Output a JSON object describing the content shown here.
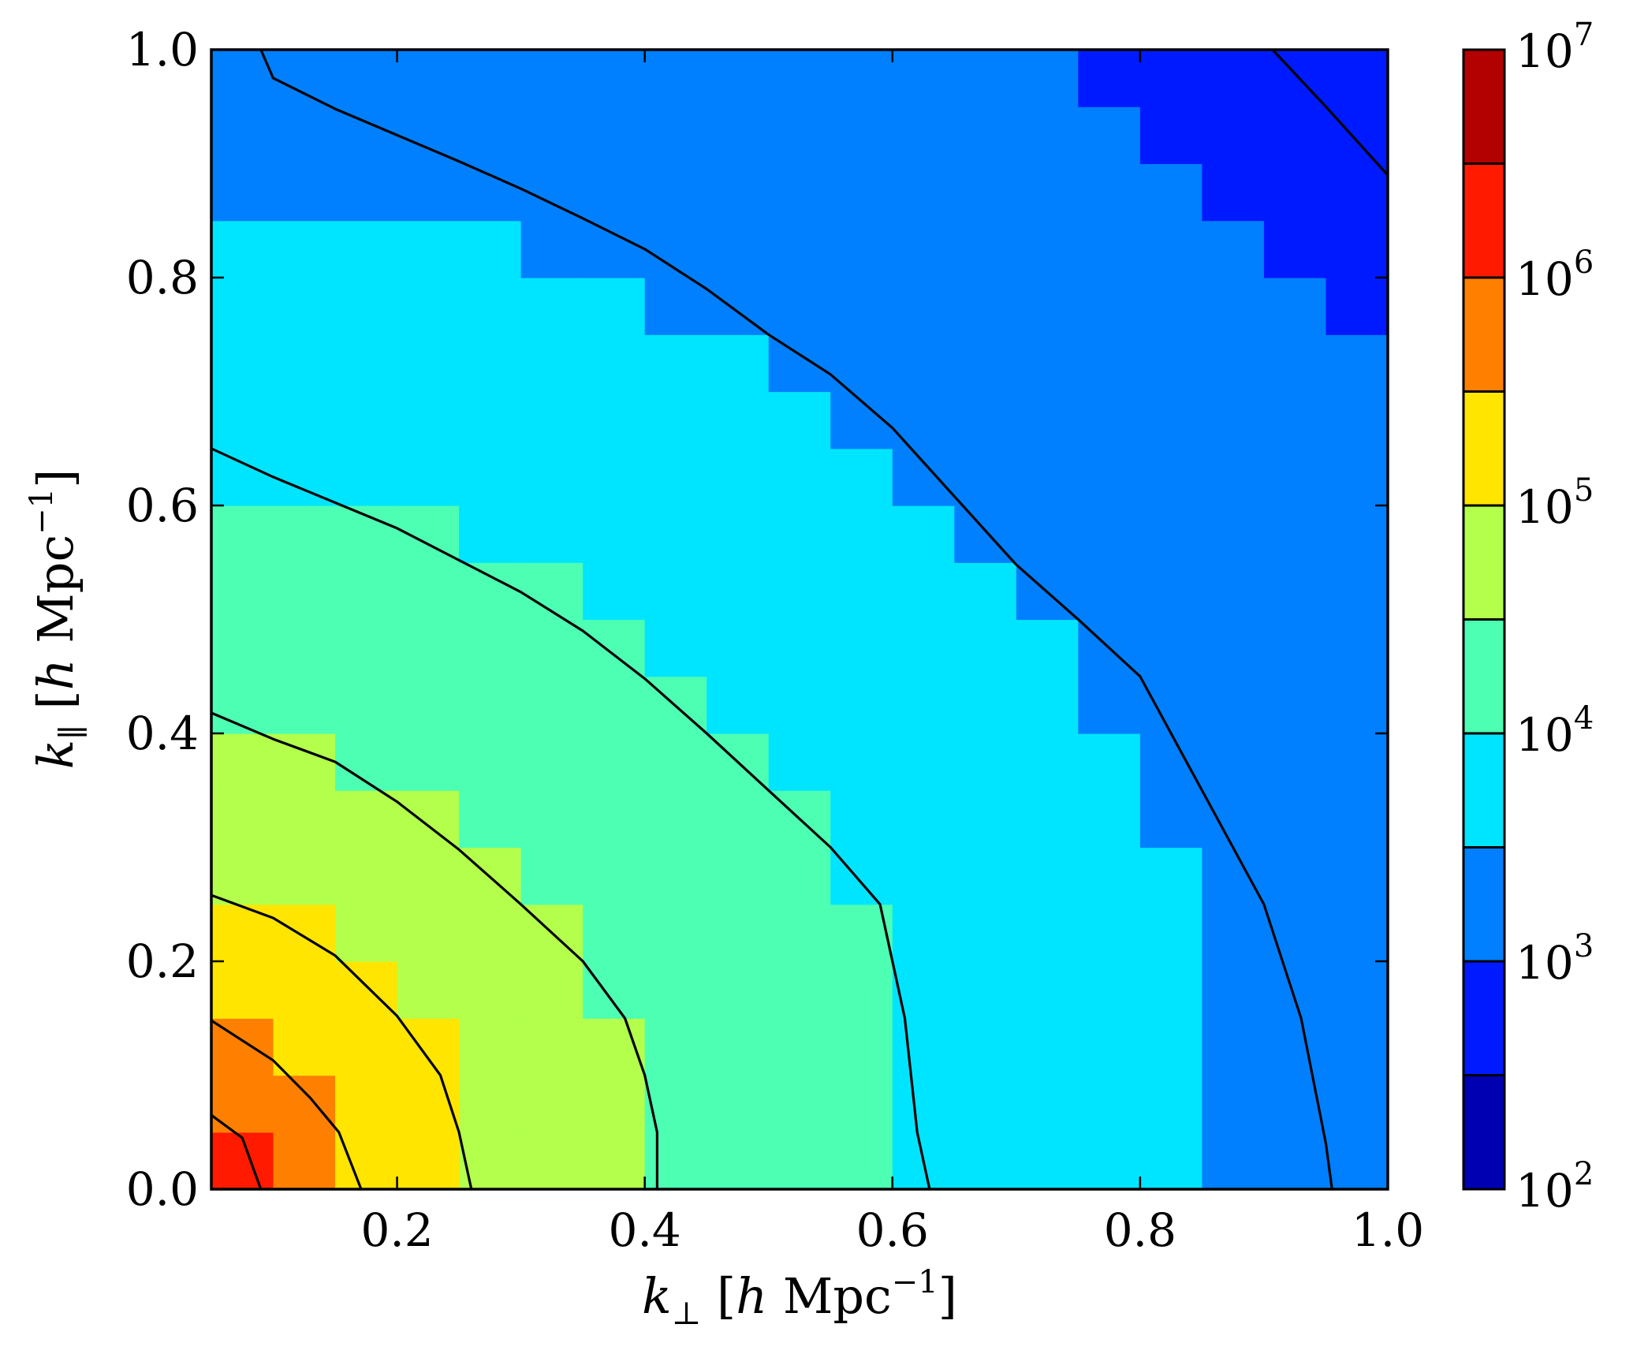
{
  "chart_data": {
    "type": "heatmap",
    "title": "",
    "xlabel": "k⊥ [h Mpc⁻¹]",
    "ylabel": "k∥ [h Mpc⁻¹]",
    "xlim": [
      0.05,
      1.0
    ],
    "ylim": [
      0.0,
      1.0
    ],
    "x_ticks": [
      {
        "value": 0.2,
        "label": "0.2"
      },
      {
        "value": 0.4,
        "label": "0.4"
      },
      {
        "value": 0.6,
        "label": "0.6"
      },
      {
        "value": 0.8,
        "label": "0.8"
      },
      {
        "value": 1.0,
        "label": "1.0"
      }
    ],
    "y_ticks": [
      {
        "value": 0.0,
        "label": "0.0"
      },
      {
        "value": 0.2,
        "label": "0.2"
      },
      {
        "value": 0.4,
        "label": "0.4"
      },
      {
        "value": 0.6,
        "label": "0.6"
      },
      {
        "value": 0.8,
        "label": "0.8"
      },
      {
        "value": 1.0,
        "label": "1.0"
      }
    ],
    "grid": false,
    "colorbar": {
      "scale": "log",
      "range": [
        100,
        10000000
      ],
      "ticks": [
        {
          "exponent": 2,
          "base": "10",
          "sup": "2"
        },
        {
          "exponent": 3,
          "base": "10",
          "sup": "3"
        },
        {
          "exponent": 4,
          "base": "10",
          "sup": "4"
        },
        {
          "exponent": 5,
          "base": "10",
          "sup": "5"
        },
        {
          "exponent": 6,
          "base": "10",
          "sup": "6"
        },
        {
          "exponent": 7,
          "base": "10",
          "sup": "7"
        }
      ],
      "level_step_log10": 0.5,
      "colormap": "jet"
    },
    "field_model": {
      "description_of_values": "log10 of plotted quantity as function of k = sqrt(kperp^2 + kpar^2)",
      "k_points": [
        0.0,
        0.102,
        0.171,
        0.26,
        0.41,
        0.62,
        0.87,
        0.95,
        1.2,
        1.42
      ],
      "log10_values": [
        6.5,
        6.0,
        5.5,
        5.0,
        4.5,
        4.0,
        3.5,
        3.4,
        3.05,
        2.75
      ],
      "pixel_grid": {
        "nx": 19,
        "ny": 20
      }
    },
    "contours": [
      {
        "level_log10": 6.0,
        "points": [
          [
            0.05,
            0.065
          ],
          [
            0.075,
            0.045
          ],
          [
            0.09,
            0.0
          ]
        ]
      },
      {
        "level_log10": 5.5,
        "points": [
          [
            0.05,
            0.148
          ],
          [
            0.1,
            0.113
          ],
          [
            0.13,
            0.08
          ],
          [
            0.153,
            0.05
          ],
          [
            0.171,
            0.0
          ]
        ]
      },
      {
        "level_log10": 5.0,
        "points": [
          [
            0.05,
            0.258
          ],
          [
            0.1,
            0.238
          ],
          [
            0.15,
            0.205
          ],
          [
            0.2,
            0.152
          ],
          [
            0.235,
            0.1
          ],
          [
            0.25,
            0.05
          ],
          [
            0.26,
            0.0
          ]
        ]
      },
      {
        "level_log10": 4.5,
        "points": [
          [
            0.05,
            0.418
          ],
          [
            0.1,
            0.395
          ],
          [
            0.15,
            0.375
          ],
          [
            0.2,
            0.34
          ],
          [
            0.25,
            0.298
          ],
          [
            0.3,
            0.25
          ],
          [
            0.35,
            0.2
          ],
          [
            0.384,
            0.15
          ],
          [
            0.4,
            0.1
          ],
          [
            0.41,
            0.05
          ],
          [
            0.41,
            0.0
          ]
        ]
      },
      {
        "level_log10": 4.0,
        "points": [
          [
            0.05,
            0.65
          ],
          [
            0.1,
            0.625
          ],
          [
            0.2,
            0.58
          ],
          [
            0.3,
            0.524
          ],
          [
            0.35,
            0.49
          ],
          [
            0.4,
            0.448
          ],
          [
            0.45,
            0.4
          ],
          [
            0.5,
            0.35
          ],
          [
            0.55,
            0.3
          ],
          [
            0.59,
            0.25
          ],
          [
            0.6,
            0.2
          ],
          [
            0.61,
            0.15
          ],
          [
            0.62,
            0.05
          ],
          [
            0.63,
            0.0
          ]
        ]
      },
      {
        "level_log10": 3.5,
        "points": [
          [
            0.09,
            1.0
          ],
          [
            0.1,
            0.975
          ],
          [
            0.15,
            0.948
          ],
          [
            0.2,
            0.925
          ],
          [
            0.25,
            0.902
          ],
          [
            0.3,
            0.878
          ],
          [
            0.35,
            0.852
          ],
          [
            0.4,
            0.825
          ],
          [
            0.45,
            0.79
          ],
          [
            0.5,
            0.75
          ],
          [
            0.55,
            0.715
          ],
          [
            0.6,
            0.668
          ],
          [
            0.65,
            0.608
          ],
          [
            0.7,
            0.548
          ],
          [
            0.75,
            0.5
          ],
          [
            0.8,
            0.45
          ],
          [
            0.85,
            0.35
          ],
          [
            0.9,
            0.25
          ],
          [
            0.93,
            0.15
          ],
          [
            0.95,
            0.04
          ],
          [
            0.955,
            0.0
          ]
        ]
      },
      {
        "level_log10": 3.0,
        "points": [
          [
            0.907,
            1.0
          ],
          [
            0.95,
            0.95
          ],
          [
            1.0,
            0.89
          ]
        ]
      }
    ]
  }
}
